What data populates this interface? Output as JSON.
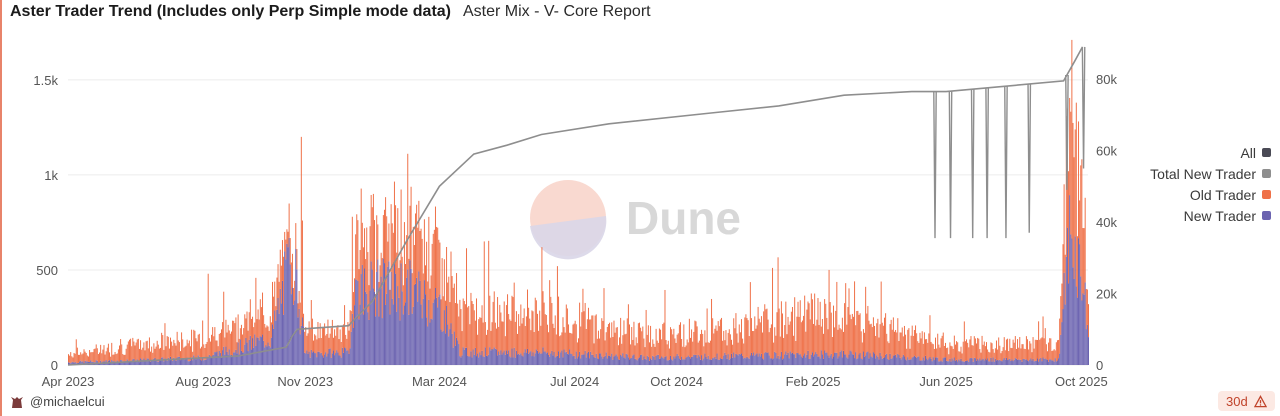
{
  "header": {
    "title": "Aster Trader Trend (Includes only Perp Simple mode data)",
    "subtitle": "Aster Mix - V- Core Report"
  },
  "footer": {
    "author": "@michaelcui",
    "range": "30d",
    "author_icon": "dune-avatar-icon",
    "warning_icon": "warning-icon"
  },
  "watermark": {
    "text": "Dune"
  },
  "colors": {
    "all": "#4a4a55",
    "total_new_trader": "#8e8e8e",
    "old_trader": "#ef7148",
    "new_trader": "#6b63b0",
    "grid": "#ececec",
    "axis_text": "#555555"
  },
  "chart_data": {
    "type": "bar",
    "title": "Aster Trader Trend (Includes only Perp Simple mode data)",
    "x_start": "2023-04-01",
    "x_end": "2025-10-07",
    "x_ticks": [
      "Apr 2023",
      "Aug 2023",
      "Nov 2023",
      "Mar 2024",
      "Jul 2024",
      "Oct 2024",
      "Feb 2025",
      "Jun 2025",
      "Oct 2025"
    ],
    "x_tick_dates": [
      "2023-04-01",
      "2023-08-01",
      "2023-11-01",
      "2024-03-01",
      "2024-07-01",
      "2024-10-01",
      "2025-02-01",
      "2025-06-01",
      "2025-10-01"
    ],
    "y_left": {
      "ticks": [
        "0",
        "500",
        "1k",
        "1.5k"
      ],
      "tick_values": [
        0,
        500,
        1000,
        1500
      ],
      "range": [
        0,
        1720
      ]
    },
    "y_right": {
      "ticks": [
        "0",
        "20k",
        "40k",
        "60k",
        "80k"
      ],
      "tick_values": [
        0,
        20000,
        40000,
        60000,
        80000
      ],
      "range": [
        0,
        91500
      ]
    },
    "grid": true,
    "legend_position": "right",
    "legend": [
      "All",
      "Total New Trader",
      "Old Trader",
      "New Trader"
    ],
    "series": [
      {
        "name": "New Trader",
        "kind": "stacked-bar",
        "axis": "left",
        "segments": [
          [
            "2023-04-01",
            15
          ],
          [
            "2023-06-01",
            25
          ],
          [
            "2023-08-01",
            40
          ],
          [
            "2023-10-01",
            150
          ],
          [
            "2023-10-20",
            620
          ],
          [
            "2023-11-01",
            60
          ],
          [
            "2023-12-10",
            70
          ],
          [
            "2023-12-15",
            420
          ],
          [
            "2024-02-01",
            420
          ],
          [
            "2024-03-01",
            320
          ],
          [
            "2024-03-20",
            70
          ],
          [
            "2024-06-01",
            70
          ],
          [
            "2024-09-01",
            40
          ],
          [
            "2024-12-01",
            50
          ],
          [
            "2025-03-01",
            60
          ],
          [
            "2025-06-01",
            30
          ],
          [
            "2025-09-10",
            30
          ],
          [
            "2025-09-20",
            700
          ],
          [
            "2025-10-01",
            500
          ],
          [
            "2025-10-07",
            150
          ]
        ]
      },
      {
        "name": "Old Trader",
        "kind": "stacked-bar",
        "axis": "left",
        "segments": [
          [
            "2023-04-01",
            40
          ],
          [
            "2023-06-01",
            80
          ],
          [
            "2023-08-01",
            100
          ],
          [
            "2023-10-01",
            150
          ],
          [
            "2023-11-01",
            120
          ],
          [
            "2023-12-10",
            120
          ],
          [
            "2023-12-15",
            230
          ],
          [
            "2024-02-01",
            300
          ],
          [
            "2024-03-01",
            280
          ],
          [
            "2024-03-20",
            220
          ],
          [
            "2024-06-01",
            200
          ],
          [
            "2024-09-01",
            120
          ],
          [
            "2024-12-01",
            150
          ],
          [
            "2025-02-01",
            210
          ],
          [
            "2025-04-01",
            150
          ],
          [
            "2025-06-01",
            80
          ],
          [
            "2025-09-10",
            80
          ],
          [
            "2025-09-20",
            700
          ],
          [
            "2025-10-01",
            400
          ],
          [
            "2025-10-07",
            200
          ]
        ],
        "spikes": [
          [
            "2023-08-05",
            480
          ],
          [
            "2023-10-28",
            1200
          ],
          [
            "2023-10-29",
            760
          ],
          [
            "2024-01-01",
            900
          ],
          [
            "2024-04-10",
            650
          ],
          [
            "2024-06-01",
            620
          ],
          [
            "2024-06-15",
            520
          ],
          [
            "2025-02-15",
            500
          ],
          [
            "2025-09-22",
            1710
          ],
          [
            "2025-09-26",
            1380
          ],
          [
            "2025-09-30",
            1050
          ],
          [
            "2025-10-03",
            720
          ]
        ]
      },
      {
        "name": "Total New Trader",
        "kind": "line",
        "axis": "right",
        "points": [
          [
            "2023-04-01",
            0
          ],
          [
            "2023-07-01",
            1500
          ],
          [
            "2023-09-01",
            2500
          ],
          [
            "2023-10-15",
            5000
          ],
          [
            "2023-10-20",
            8000
          ],
          [
            "2023-10-25",
            10000
          ],
          [
            "2023-12-10",
            11000
          ],
          [
            "2024-01-01",
            18000
          ],
          [
            "2024-02-01",
            35000
          ],
          [
            "2024-03-01",
            50000
          ],
          [
            "2024-04-01",
            59000
          ],
          [
            "2024-05-01",
            61500
          ],
          [
            "2024-06-01",
            64500
          ],
          [
            "2024-08-01",
            67500
          ],
          [
            "2024-11-01",
            70500
          ],
          [
            "2025-01-01",
            72500
          ],
          [
            "2025-03-01",
            75500
          ],
          [
            "2025-05-01",
            76500
          ],
          [
            "2025-06-01",
            76500
          ],
          [
            "2025-09-15",
            79500
          ],
          [
            "2025-09-25",
            85000
          ],
          [
            "2025-10-02",
            89000
          ]
        ],
        "dropouts": [
          [
            "2025-05-22",
            35500
          ],
          [
            "2025-06-05",
            35500
          ],
          [
            "2025-06-25",
            35500
          ],
          [
            "2025-07-08",
            35500
          ],
          [
            "2025-07-25",
            35500
          ],
          [
            "2025-08-15",
            37000
          ],
          [
            "2025-09-18",
            49000
          ],
          [
            "2025-10-03",
            55000
          ]
        ]
      }
    ]
  }
}
